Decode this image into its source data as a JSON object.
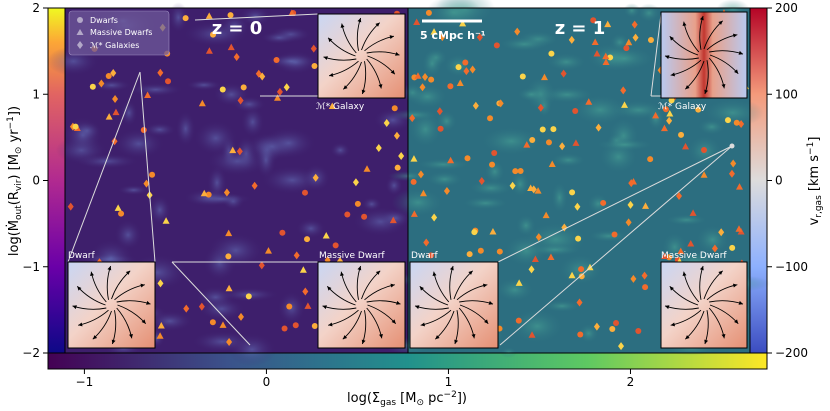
{
  "chart_data": {
    "type": "scatter",
    "panels": [
      {
        "label": "z = 0",
        "inset_labels": [
          "Dwarf",
          "Massive Dwarf",
          "ℳ* Galaxy"
        ]
      },
      {
        "label": "z = 1",
        "inset_labels": [
          "Dwarf",
          "Massive Dwarf",
          "ℳ* Galaxy"
        ]
      }
    ],
    "legend": {
      "placement": "top-left",
      "entries": [
        {
          "label": "Dwarfs",
          "marker": "circle"
        },
        {
          "label": "Massive Dwarfs",
          "marker": "triangle"
        },
        {
          "label": "ℳ* Galaxies",
          "marker": "diamond"
        }
      ]
    },
    "scale_bar_label": "5 cMpc h⁻¹",
    "left_axis": {
      "label": "log(Ṁout(Rvir) [M⊙ yr⁻¹])",
      "ylim": [
        -2,
        2
      ],
      "ticks": [
        -2,
        -1,
        0,
        1,
        2
      ],
      "tick_labels": [
        "−2",
        "−1",
        "0",
        "1",
        "2"
      ],
      "colormap": "plasma"
    },
    "right_axis": {
      "label": "vr,gas [km s⁻¹]",
      "ylim": [
        -200,
        200
      ],
      "ticks": [
        -200,
        -100,
        0,
        100,
        200
      ],
      "tick_labels": [
        "−200",
        "−100",
        "0",
        "100",
        "200"
      ],
      "colormap": "coolwarm"
    },
    "bottom_axis": {
      "label": "log(Σgas [M⊙ pc⁻²])",
      "xlim": [
        -1.2,
        2.75
      ],
      "ticks": [
        -1,
        0,
        1,
        2
      ],
      "tick_labels": [
        "−1",
        "0",
        "1",
        "2"
      ],
      "colormap": "viridis"
    },
    "colors": {
      "dwarf": "#f48a2a",
      "massive_dwarf": "#f26b2c",
      "mstar_galaxy": "#fbd44a",
      "panel0_bg": "#3e1f6c",
      "panel1_bg": "#2c6e80"
    }
  }
}
